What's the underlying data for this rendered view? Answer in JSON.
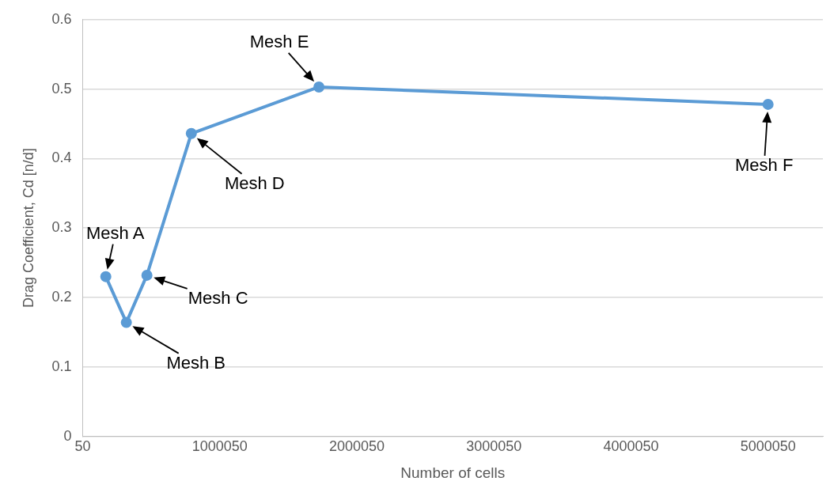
{
  "chart_data": {
    "type": "line",
    "xlabel": "Number of cells",
    "ylabel": "Drag Coefficient, Cd [n/d]",
    "x": [
      168000,
      318000,
      468000,
      792000,
      1723000,
      5000050
    ],
    "series": [
      {
        "color": "#5b9bd5",
        "values": [
          0.23,
          0.164,
          0.232,
          0.436,
          0.503,
          0.478
        ]
      }
    ],
    "xlim": [
      50,
      5400050
    ],
    "xticks": [
      50,
      1000050,
      2000050,
      3000050,
      4000050,
      5000050
    ],
    "ylim": [
      0,
      0.6
    ],
    "yticks": [
      0,
      0.1,
      0.2,
      0.3,
      0.4,
      0.5,
      0.6
    ],
    "grid": "y",
    "legend": false,
    "marker": "circle",
    "line_style": "solid",
    "annotations": [
      {
        "text": "Mesh A",
        "x": 168000,
        "y": 0.23
      },
      {
        "text": "Mesh B",
        "x": 318000,
        "y": 0.164
      },
      {
        "text": "Mesh C",
        "x": 468000,
        "y": 0.232
      },
      {
        "text": "Mesh D",
        "x": 792000,
        "y": 0.436
      },
      {
        "text": "Mesh E",
        "x": 1723000,
        "y": 0.503
      },
      {
        "text": "Mesh F",
        "x": 5000050,
        "y": 0.478
      }
    ]
  }
}
